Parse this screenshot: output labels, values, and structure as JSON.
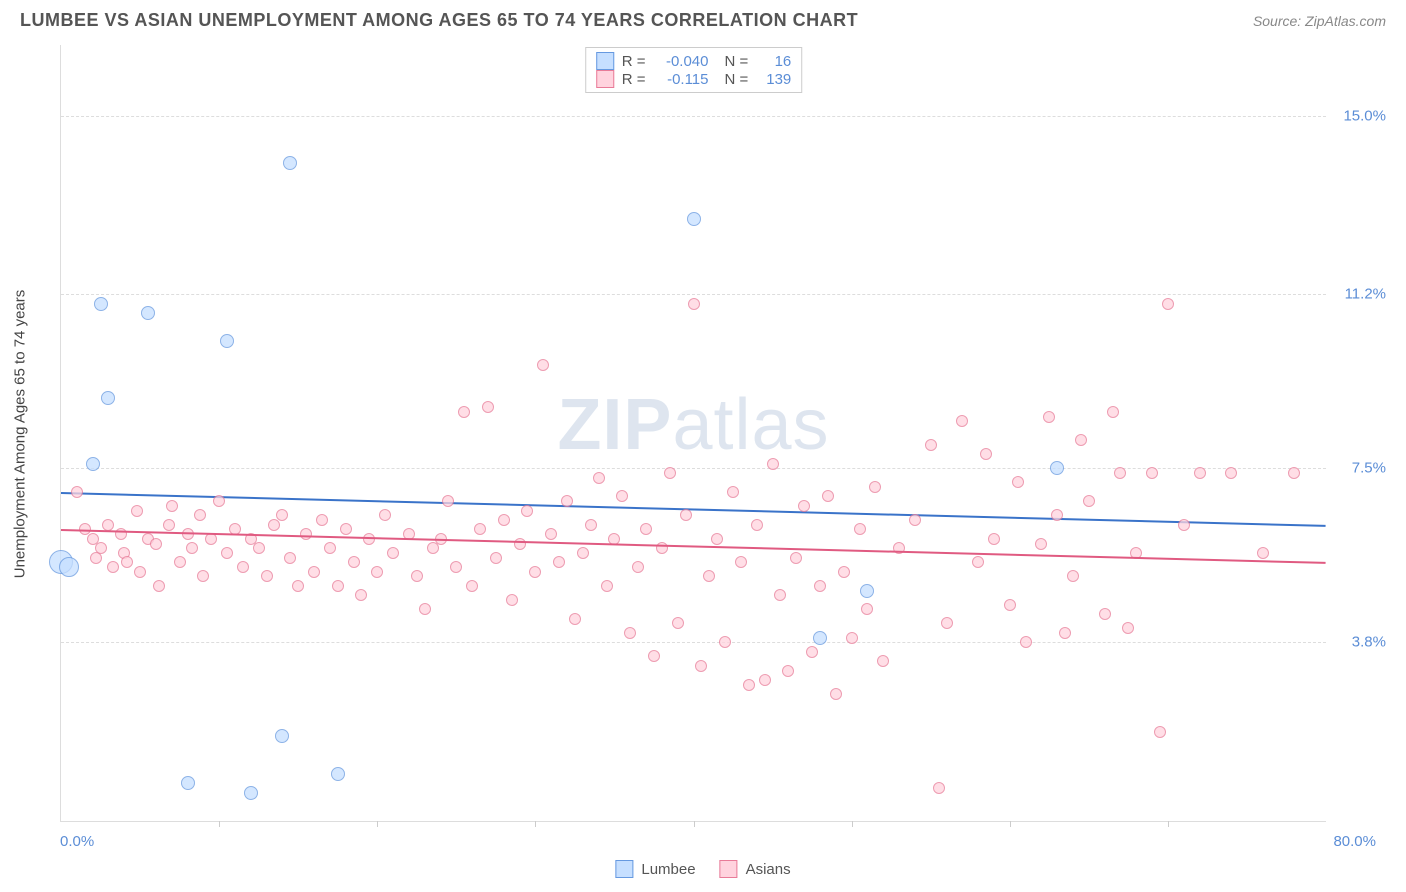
{
  "title": "LUMBEE VS ASIAN UNEMPLOYMENT AMONG AGES 65 TO 74 YEARS CORRELATION CHART",
  "source": "Source: ZipAtlas.com",
  "ylabel": "Unemployment Among Ages 65 to 74 years",
  "watermark_a": "ZIP",
  "watermark_b": "atlas",
  "chart": {
    "type": "scatter",
    "xlim": [
      0,
      80
    ],
    "ylim": [
      0,
      16.5
    ],
    "x_tick_step": 10,
    "y_ticks": [
      3.8,
      7.5,
      11.2,
      15.0
    ],
    "x_min_label": "0.0%",
    "x_max_label": "80.0%",
    "background_color": "#ffffff",
    "grid_color": "#dddddd",
    "axis_label_color": "#5b8dd6",
    "title_color": "#555555",
    "title_fontsize": 18,
    "label_fontsize": 15,
    "tick_fontsize": 15
  },
  "series": [
    {
      "id": "lumbee",
      "label": "Lumbee",
      "fill": "#c6dfff",
      "stroke": "#6699e0",
      "line": "#3a73c9",
      "R_label": "R =",
      "R": "-0.040",
      "N_label": "N =",
      "N": "16",
      "trend": {
        "y_at_xmin": 7.0,
        "y_at_xmax": 6.3
      },
      "points": [
        {
          "x": 0.0,
          "y": 5.5,
          "r": 12
        },
        {
          "x": 0.5,
          "y": 5.4,
          "r": 10
        },
        {
          "x": 2.5,
          "y": 11.0,
          "r": 7
        },
        {
          "x": 3.0,
          "y": 9.0,
          "r": 7
        },
        {
          "x": 2.0,
          "y": 7.6,
          "r": 7
        },
        {
          "x": 5.5,
          "y": 10.8,
          "r": 7
        },
        {
          "x": 10.5,
          "y": 10.2,
          "r": 7
        },
        {
          "x": 14.5,
          "y": 14.0,
          "r": 7
        },
        {
          "x": 14.0,
          "y": 1.8,
          "r": 7
        },
        {
          "x": 17.5,
          "y": 1.0,
          "r": 7
        },
        {
          "x": 8.0,
          "y": 0.8,
          "r": 7
        },
        {
          "x": 12.0,
          "y": 0.6,
          "r": 7
        },
        {
          "x": 40.0,
          "y": 12.8,
          "r": 7
        },
        {
          "x": 51.0,
          "y": 4.9,
          "r": 7
        },
        {
          "x": 48.0,
          "y": 3.9,
          "r": 7
        },
        {
          "x": 63.0,
          "y": 7.5,
          "r": 7
        }
      ]
    },
    {
      "id": "asians",
      "label": "Asians",
      "fill": "#ffd3de",
      "stroke": "#e87b98",
      "line": "#e05a81",
      "R_label": "R =",
      "R": "-0.115",
      "N_label": "N =",
      "N": "139",
      "trend": {
        "y_at_xmin": 6.2,
        "y_at_xmax": 5.5
      },
      "points": [
        {
          "x": 1,
          "y": 7.0,
          "r": 6
        },
        {
          "x": 1.5,
          "y": 6.2,
          "r": 6
        },
        {
          "x": 2,
          "y": 6.0,
          "r": 6
        },
        {
          "x": 2.2,
          "y": 5.6,
          "r": 6
        },
        {
          "x": 2.5,
          "y": 5.8,
          "r": 6
        },
        {
          "x": 3,
          "y": 6.3,
          "r": 6
        },
        {
          "x": 3.3,
          "y": 5.4,
          "r": 6
        },
        {
          "x": 3.8,
          "y": 6.1,
          "r": 6
        },
        {
          "x": 4,
          "y": 5.7,
          "r": 6
        },
        {
          "x": 4.2,
          "y": 5.5,
          "r": 6
        },
        {
          "x": 4.8,
          "y": 6.6,
          "r": 6
        },
        {
          "x": 5,
          "y": 5.3,
          "r": 6
        },
        {
          "x": 5.5,
          "y": 6.0,
          "r": 6
        },
        {
          "x": 6,
          "y": 5.9,
          "r": 6
        },
        {
          "x": 6.2,
          "y": 5.0,
          "r": 6
        },
        {
          "x": 6.8,
          "y": 6.3,
          "r": 6
        },
        {
          "x": 7,
          "y": 6.7,
          "r": 6
        },
        {
          "x": 7.5,
          "y": 5.5,
          "r": 6
        },
        {
          "x": 8,
          "y": 6.1,
          "r": 6
        },
        {
          "x": 8.3,
          "y": 5.8,
          "r": 6
        },
        {
          "x": 8.8,
          "y": 6.5,
          "r": 6
        },
        {
          "x": 9,
          "y": 5.2,
          "r": 6
        },
        {
          "x": 9.5,
          "y": 6.0,
          "r": 6
        },
        {
          "x": 10,
          "y": 6.8,
          "r": 6
        },
        {
          "x": 10.5,
          "y": 5.7,
          "r": 6
        },
        {
          "x": 11,
          "y": 6.2,
          "r": 6
        },
        {
          "x": 11.5,
          "y": 5.4,
          "r": 6
        },
        {
          "x": 12,
          "y": 6.0,
          "r": 6
        },
        {
          "x": 12.5,
          "y": 5.8,
          "r": 6
        },
        {
          "x": 13,
          "y": 5.2,
          "r": 6
        },
        {
          "x": 13.5,
          "y": 6.3,
          "r": 6
        },
        {
          "x": 14,
          "y": 6.5,
          "r": 6
        },
        {
          "x": 14.5,
          "y": 5.6,
          "r": 6
        },
        {
          "x": 15,
          "y": 5.0,
          "r": 6
        },
        {
          "x": 15.5,
          "y": 6.1,
          "r": 6
        },
        {
          "x": 16,
          "y": 5.3,
          "r": 6
        },
        {
          "x": 16.5,
          "y": 6.4,
          "r": 6
        },
        {
          "x": 17,
          "y": 5.8,
          "r": 6
        },
        {
          "x": 17.5,
          "y": 5.0,
          "r": 6
        },
        {
          "x": 18,
          "y": 6.2,
          "r": 6
        },
        {
          "x": 18.5,
          "y": 5.5,
          "r": 6
        },
        {
          "x": 19,
          "y": 4.8,
          "r": 6
        },
        {
          "x": 19.5,
          "y": 6.0,
          "r": 6
        },
        {
          "x": 20,
          "y": 5.3,
          "r": 6
        },
        {
          "x": 20.5,
          "y": 6.5,
          "r": 6
        },
        {
          "x": 21,
          "y": 5.7,
          "r": 6
        },
        {
          "x": 22,
          "y": 6.1,
          "r": 6
        },
        {
          "x": 22.5,
          "y": 5.2,
          "r": 6
        },
        {
          "x": 23,
          "y": 4.5,
          "r": 6
        },
        {
          "x": 23.5,
          "y": 5.8,
          "r": 6
        },
        {
          "x": 24,
          "y": 6.0,
          "r": 6
        },
        {
          "x": 24.5,
          "y": 6.8,
          "r": 6
        },
        {
          "x": 25,
          "y": 5.4,
          "r": 6
        },
        {
          "x": 25.5,
          "y": 8.7,
          "r": 6
        },
        {
          "x": 26,
          "y": 5.0,
          "r": 6
        },
        {
          "x": 26.5,
          "y": 6.2,
          "r": 6
        },
        {
          "x": 27,
          "y": 8.8,
          "r": 6
        },
        {
          "x": 27.5,
          "y": 5.6,
          "r": 6
        },
        {
          "x": 28,
          "y": 6.4,
          "r": 6
        },
        {
          "x": 28.5,
          "y": 4.7,
          "r": 6
        },
        {
          "x": 29,
          "y": 5.9,
          "r": 6
        },
        {
          "x": 29.5,
          "y": 6.6,
          "r": 6
        },
        {
          "x": 30,
          "y": 5.3,
          "r": 6
        },
        {
          "x": 30.5,
          "y": 9.7,
          "r": 6
        },
        {
          "x": 31,
          "y": 6.1,
          "r": 6
        },
        {
          "x": 31.5,
          "y": 5.5,
          "r": 6
        },
        {
          "x": 32,
          "y": 6.8,
          "r": 6
        },
        {
          "x": 32.5,
          "y": 4.3,
          "r": 6
        },
        {
          "x": 33,
          "y": 5.7,
          "r": 6
        },
        {
          "x": 33.5,
          "y": 6.3,
          "r": 6
        },
        {
          "x": 34,
          "y": 7.3,
          "r": 6
        },
        {
          "x": 34.5,
          "y": 5.0,
          "r": 6
        },
        {
          "x": 35,
          "y": 6.0,
          "r": 6
        },
        {
          "x": 35.5,
          "y": 6.9,
          "r": 6
        },
        {
          "x": 36,
          "y": 4.0,
          "r": 6
        },
        {
          "x": 36.5,
          "y": 5.4,
          "r": 6
        },
        {
          "x": 37,
          "y": 6.2,
          "r": 6
        },
        {
          "x": 37.5,
          "y": 3.5,
          "r": 6
        },
        {
          "x": 38,
          "y": 5.8,
          "r": 6
        },
        {
          "x": 38.5,
          "y": 7.4,
          "r": 6
        },
        {
          "x": 39,
          "y": 4.2,
          "r": 6
        },
        {
          "x": 39.5,
          "y": 6.5,
          "r": 6
        },
        {
          "x": 40,
          "y": 11.0,
          "r": 6
        },
        {
          "x": 40.5,
          "y": 3.3,
          "r": 6
        },
        {
          "x": 41,
          "y": 5.2,
          "r": 6
        },
        {
          "x": 41.5,
          "y": 6.0,
          "r": 6
        },
        {
          "x": 42,
          "y": 3.8,
          "r": 6
        },
        {
          "x": 42.5,
          "y": 7.0,
          "r": 6
        },
        {
          "x": 43,
          "y": 5.5,
          "r": 6
        },
        {
          "x": 43.5,
          "y": 2.9,
          "r": 6
        },
        {
          "x": 44,
          "y": 6.3,
          "r": 6
        },
        {
          "x": 44.5,
          "y": 3.0,
          "r": 6
        },
        {
          "x": 45,
          "y": 7.6,
          "r": 6
        },
        {
          "x": 45.5,
          "y": 4.8,
          "r": 6
        },
        {
          "x": 46,
          "y": 3.2,
          "r": 6
        },
        {
          "x": 46.5,
          "y": 5.6,
          "r": 6
        },
        {
          "x": 47,
          "y": 6.7,
          "r": 6
        },
        {
          "x": 47.5,
          "y": 3.6,
          "r": 6
        },
        {
          "x": 48,
          "y": 5.0,
          "r": 6
        },
        {
          "x": 48.5,
          "y": 6.9,
          "r": 6
        },
        {
          "x": 49,
          "y": 2.7,
          "r": 6
        },
        {
          "x": 49.5,
          "y": 5.3,
          "r": 6
        },
        {
          "x": 50,
          "y": 3.9,
          "r": 6
        },
        {
          "x": 50.5,
          "y": 6.2,
          "r": 6
        },
        {
          "x": 51,
          "y": 4.5,
          "r": 6
        },
        {
          "x": 51.5,
          "y": 7.1,
          "r": 6
        },
        {
          "x": 52,
          "y": 3.4,
          "r": 6
        },
        {
          "x": 53,
          "y": 5.8,
          "r": 6
        },
        {
          "x": 54,
          "y": 6.4,
          "r": 6
        },
        {
          "x": 55,
          "y": 8.0,
          "r": 6
        },
        {
          "x": 55.5,
          "y": 0.7,
          "r": 6
        },
        {
          "x": 56,
          "y": 4.2,
          "r": 6
        },
        {
          "x": 57,
          "y": 8.5,
          "r": 6
        },
        {
          "x": 58,
          "y": 5.5,
          "r": 6
        },
        {
          "x": 58.5,
          "y": 7.8,
          "r": 6
        },
        {
          "x": 59,
          "y": 6.0,
          "r": 6
        },
        {
          "x": 60,
          "y": 4.6,
          "r": 6
        },
        {
          "x": 60.5,
          "y": 7.2,
          "r": 6
        },
        {
          "x": 61,
          "y": 3.8,
          "r": 6
        },
        {
          "x": 62,
          "y": 5.9,
          "r": 6
        },
        {
          "x": 62.5,
          "y": 8.6,
          "r": 6
        },
        {
          "x": 63,
          "y": 6.5,
          "r": 6
        },
        {
          "x": 63.5,
          "y": 4.0,
          "r": 6
        },
        {
          "x": 64,
          "y": 5.2,
          "r": 6
        },
        {
          "x": 64.5,
          "y": 8.1,
          "r": 6
        },
        {
          "x": 65,
          "y": 6.8,
          "r": 6
        },
        {
          "x": 66,
          "y": 4.4,
          "r": 6
        },
        {
          "x": 66.5,
          "y": 8.7,
          "r": 6
        },
        {
          "x": 67,
          "y": 7.4,
          "r": 6
        },
        {
          "x": 67.5,
          "y": 4.1,
          "r": 6
        },
        {
          "x": 68,
          "y": 5.7,
          "r": 6
        },
        {
          "x": 69,
          "y": 7.4,
          "r": 6
        },
        {
          "x": 69.5,
          "y": 1.9,
          "r": 6
        },
        {
          "x": 70,
          "y": 11.0,
          "r": 6
        },
        {
          "x": 71,
          "y": 6.3,
          "r": 6
        },
        {
          "x": 72,
          "y": 7.4,
          "r": 6
        },
        {
          "x": 74,
          "y": 7.4,
          "r": 6
        },
        {
          "x": 76,
          "y": 5.7,
          "r": 6
        },
        {
          "x": 78,
          "y": 7.4,
          "r": 6
        }
      ]
    }
  ]
}
